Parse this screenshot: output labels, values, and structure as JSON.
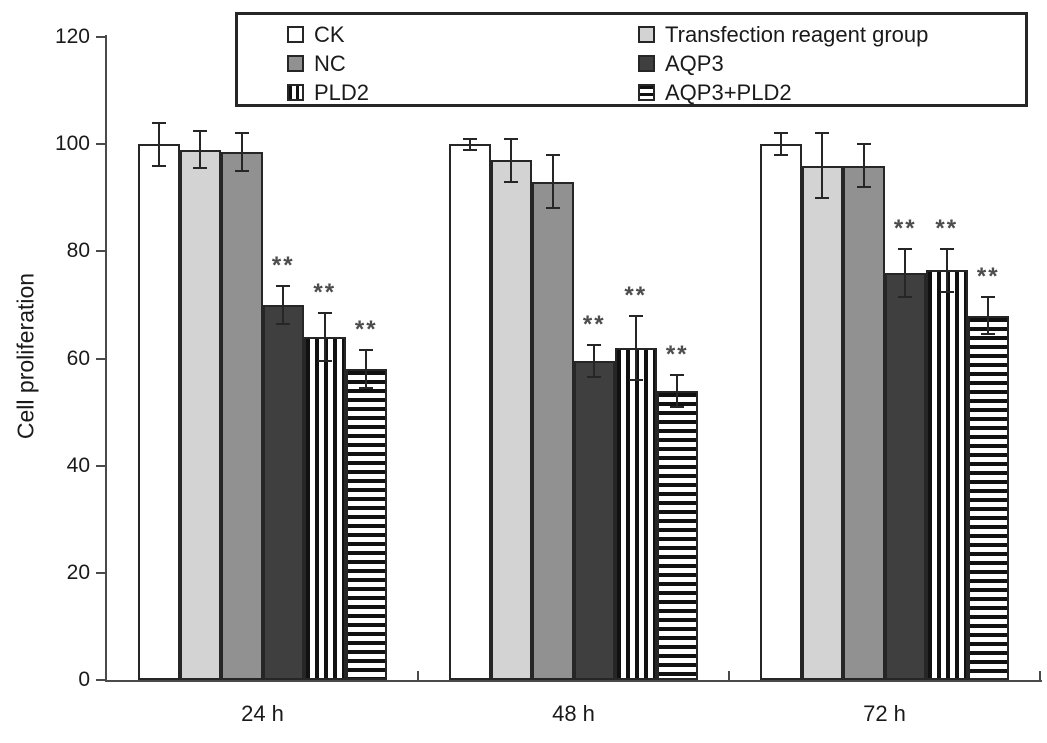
{
  "chart_data": {
    "type": "bar",
    "title": "",
    "xlabel": "",
    "ylabel": "Cell proliferation",
    "ylim": [
      0,
      120
    ],
    "yticks": [
      0,
      20,
      40,
      60,
      80,
      100,
      120
    ],
    "categories": [
      "24 h",
      "48 h",
      "72 h"
    ],
    "series": [
      {
        "name": "CK",
        "pattern": "solid",
        "fill": "#ffffff",
        "values": [
          100,
          100,
          100
        ],
        "errors": [
          4,
          1,
          2
        ],
        "sig": [
          "",
          "",
          ""
        ]
      },
      {
        "name": "Transfection reagent group",
        "pattern": "solid",
        "fill": "#d3d3d3",
        "values": [
          99,
          97,
          96
        ],
        "errors": [
          3.5,
          4,
          6
        ],
        "sig": [
          "",
          "",
          ""
        ]
      },
      {
        "name": "NC",
        "pattern": "solid",
        "fill": "#919191",
        "values": [
          98.5,
          93,
          96
        ],
        "errors": [
          3.5,
          5,
          4
        ],
        "sig": [
          "",
          "",
          ""
        ]
      },
      {
        "name": "AQP3",
        "pattern": "solid",
        "fill": "#3f3f3f",
        "values": [
          70,
          59.5,
          76
        ],
        "errors": [
          3.5,
          3,
          4.5
        ],
        "sig": [
          "**",
          "**",
          "**"
        ]
      },
      {
        "name": "PLD2",
        "pattern": "vertical-stripes",
        "fill": "#ffffff",
        "values": [
          64,
          62,
          76.5
        ],
        "errors": [
          4.5,
          6,
          4
        ],
        "sig": [
          "**",
          "**",
          "**"
        ]
      },
      {
        "name": "AQP3+PLD2",
        "pattern": "horizontal-stripes",
        "fill": "#ffffff",
        "values": [
          58,
          54,
          68
        ],
        "errors": [
          3.5,
          3,
          3.5
        ],
        "sig": [
          "**",
          "**",
          "**"
        ]
      }
    ],
    "significance_marker": "**",
    "legend_position": "top",
    "legend_columns": [
      [
        0,
        2,
        4
      ],
      [
        1,
        3,
        5
      ]
    ],
    "grid": false,
    "ink_color": "#262626",
    "axis_color": "#4a4a4a",
    "sig_color": "#4d4d4d"
  }
}
